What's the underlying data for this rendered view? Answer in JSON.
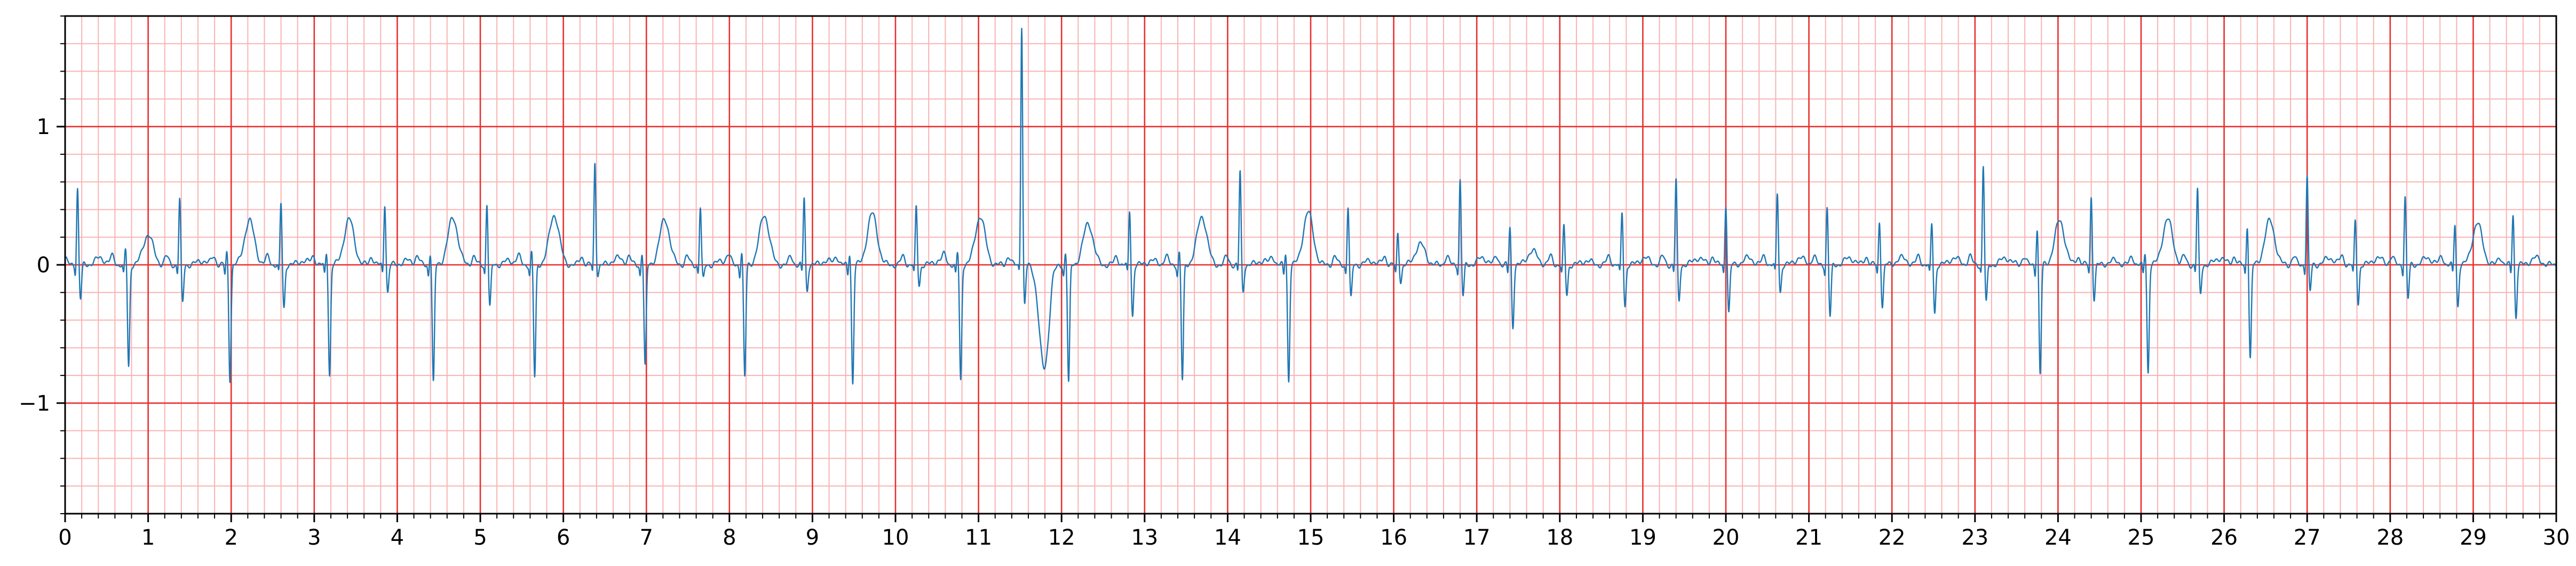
{
  "chart_data": {
    "type": "line",
    "title": "",
    "xlabel": "",
    "ylabel": "",
    "xlim": [
      0,
      30
    ],
    "ylim": [
      -1.8,
      1.8
    ],
    "x_ticks": [
      "0",
      "1",
      "2",
      "3",
      "4",
      "5",
      "6",
      "7",
      "8",
      "9",
      "10",
      "11",
      "12",
      "13",
      "14",
      "15",
      "16",
      "17",
      "18",
      "19",
      "20",
      "21",
      "22",
      "23",
      "24",
      "25",
      "26",
      "27",
      "28",
      "29",
      "30"
    ],
    "y_ticks": [
      {
        "value": -1,
        "label": "−1"
      },
      {
        "value": 0,
        "label": "0"
      },
      {
        "value": 1,
        "label": "1"
      }
    ],
    "grid": {
      "major_x": 1,
      "major_y": 1,
      "minor_x": 0.2,
      "minor_y": 0.2,
      "major_color": "#e8302f",
      "minor_color": "#f9b3b3"
    },
    "series": [
      {
        "color": "#1f77b4",
        "beats": [
          {
            "t": 0.15,
            "r": 0.56,
            "s": -0.25,
            "t_amp": 0.05
          },
          {
            "t": 0.73,
            "r": 0.12,
            "s": -0.74,
            "t_amp": 0.22
          },
          {
            "t": 1.38,
            "r": 0.48,
            "s": -0.28,
            "t_amp": 0.03
          },
          {
            "t": 1.95,
            "r": 0.1,
            "s": -0.83,
            "t_amp": 0.32
          },
          {
            "t": 2.6,
            "r": 0.45,
            "s": -0.32,
            "t_amp": 0.03
          },
          {
            "t": 3.15,
            "r": 0.1,
            "s": -0.8,
            "t_amp": 0.33
          },
          {
            "t": 3.85,
            "r": 0.45,
            "s": -0.2,
            "t_amp": 0.03
          },
          {
            "t": 4.4,
            "r": 0.1,
            "s": -0.86,
            "t_amp": 0.34
          },
          {
            "t": 5.08,
            "r": 0.45,
            "s": -0.31,
            "t_amp": 0.03
          },
          {
            "t": 5.62,
            "r": 0.1,
            "s": -0.82,
            "t_amp": 0.36
          },
          {
            "t": 6.38,
            "r": 0.74,
            "s": -0.07,
            "t_amp": 0.05
          },
          {
            "t": 6.95,
            "r": 0.1,
            "s": -0.74,
            "t_amp": 0.33
          },
          {
            "t": 7.65,
            "r": 0.42,
            "s": -0.11,
            "t_amp": 0.03
          },
          {
            "t": 8.15,
            "r": 0.1,
            "s": -0.82,
            "t_amp": 0.36
          },
          {
            "t": 8.9,
            "r": 0.49,
            "s": -0.19,
            "t_amp": 0.03
          },
          {
            "t": 9.45,
            "r": 0.1,
            "s": -0.86,
            "t_amp": 0.37
          },
          {
            "t": 10.25,
            "r": 0.42,
            "s": -0.15,
            "t_amp": 0.03
          },
          {
            "t": 10.75,
            "r": 0.1,
            "s": -0.84,
            "t_amp": 0.35
          },
          {
            "t": 11.52,
            "r": 1.74,
            "s": -0.3,
            "t_amp": -0.75
          },
          {
            "t": 12.05,
            "r": 0.1,
            "s": -0.86,
            "t_amp": 0.3
          },
          {
            "t": 12.82,
            "r": 0.4,
            "s": -0.37,
            "t_amp": 0.03
          },
          {
            "t": 13.42,
            "r": 0.1,
            "s": -0.84,
            "t_amp": 0.35
          },
          {
            "t": 14.15,
            "r": 0.68,
            "s": -0.2,
            "t_amp": 0.03
          },
          {
            "t": 14.7,
            "r": 0.1,
            "s": -0.84,
            "t_amp": 0.38
          },
          {
            "t": 15.45,
            "r": 0.43,
            "s": -0.25,
            "t_amp": 0.03
          },
          {
            "t": 16.05,
            "r": 0.23,
            "s": -0.12,
            "t_amp": 0.15
          },
          {
            "t": 16.8,
            "r": 0.62,
            "s": -0.23,
            "t_amp": 0.05
          },
          {
            "t": 17.4,
            "r": 0.28,
            "s": -0.45,
            "t_amp": 0.1
          },
          {
            "t": 18.05,
            "r": 0.28,
            "s": -0.22,
            "t_amp": 0.03
          },
          {
            "t": 18.75,
            "r": 0.38,
            "s": -0.3,
            "t_amp": 0.05
          },
          {
            "t": 19.4,
            "r": 0.62,
            "s": -0.27,
            "t_amp": 0.05
          },
          {
            "t": 20.0,
            "r": 0.45,
            "s": -0.35,
            "t_amp": 0.05
          },
          {
            "t": 20.62,
            "r": 0.52,
            "s": -0.2,
            "t_amp": 0.05
          },
          {
            "t": 21.22,
            "r": 0.42,
            "s": -0.38,
            "t_amp": 0.05
          },
          {
            "t": 21.85,
            "r": 0.32,
            "s": -0.3,
            "t_amp": 0.05
          },
          {
            "t": 22.48,
            "r": 0.3,
            "s": -0.35,
            "t_amp": 0.05
          },
          {
            "t": 23.1,
            "r": 0.72,
            "s": -0.28,
            "t_amp": 0.05
          },
          {
            "t": 23.75,
            "r": 0.28,
            "s": -0.8,
            "t_amp": 0.32
          },
          {
            "t": 24.4,
            "r": 0.5,
            "s": -0.25,
            "t_amp": 0.03
          },
          {
            "t": 25.05,
            "r": 0.1,
            "s": -0.78,
            "t_amp": 0.33
          },
          {
            "t": 25.68,
            "r": 0.55,
            "s": -0.22,
            "t_amp": 0.05
          },
          {
            "t": 26.28,
            "r": 0.3,
            "s": -0.68,
            "t_amp": 0.32
          },
          {
            "t": 27.0,
            "r": 0.65,
            "s": -0.2,
            "t_amp": 0.05
          },
          {
            "t": 27.58,
            "r": 0.32,
            "s": -0.28,
            "t_amp": 0.05
          },
          {
            "t": 28.18,
            "r": 0.5,
            "s": -0.25,
            "t_amp": 0.05
          },
          {
            "t": 28.78,
            "r": 0.3,
            "s": -0.3,
            "t_amp": 0.3
          },
          {
            "t": 29.48,
            "r": 0.38,
            "s": -0.38,
            "t_amp": 0.05
          }
        ]
      }
    ]
  }
}
